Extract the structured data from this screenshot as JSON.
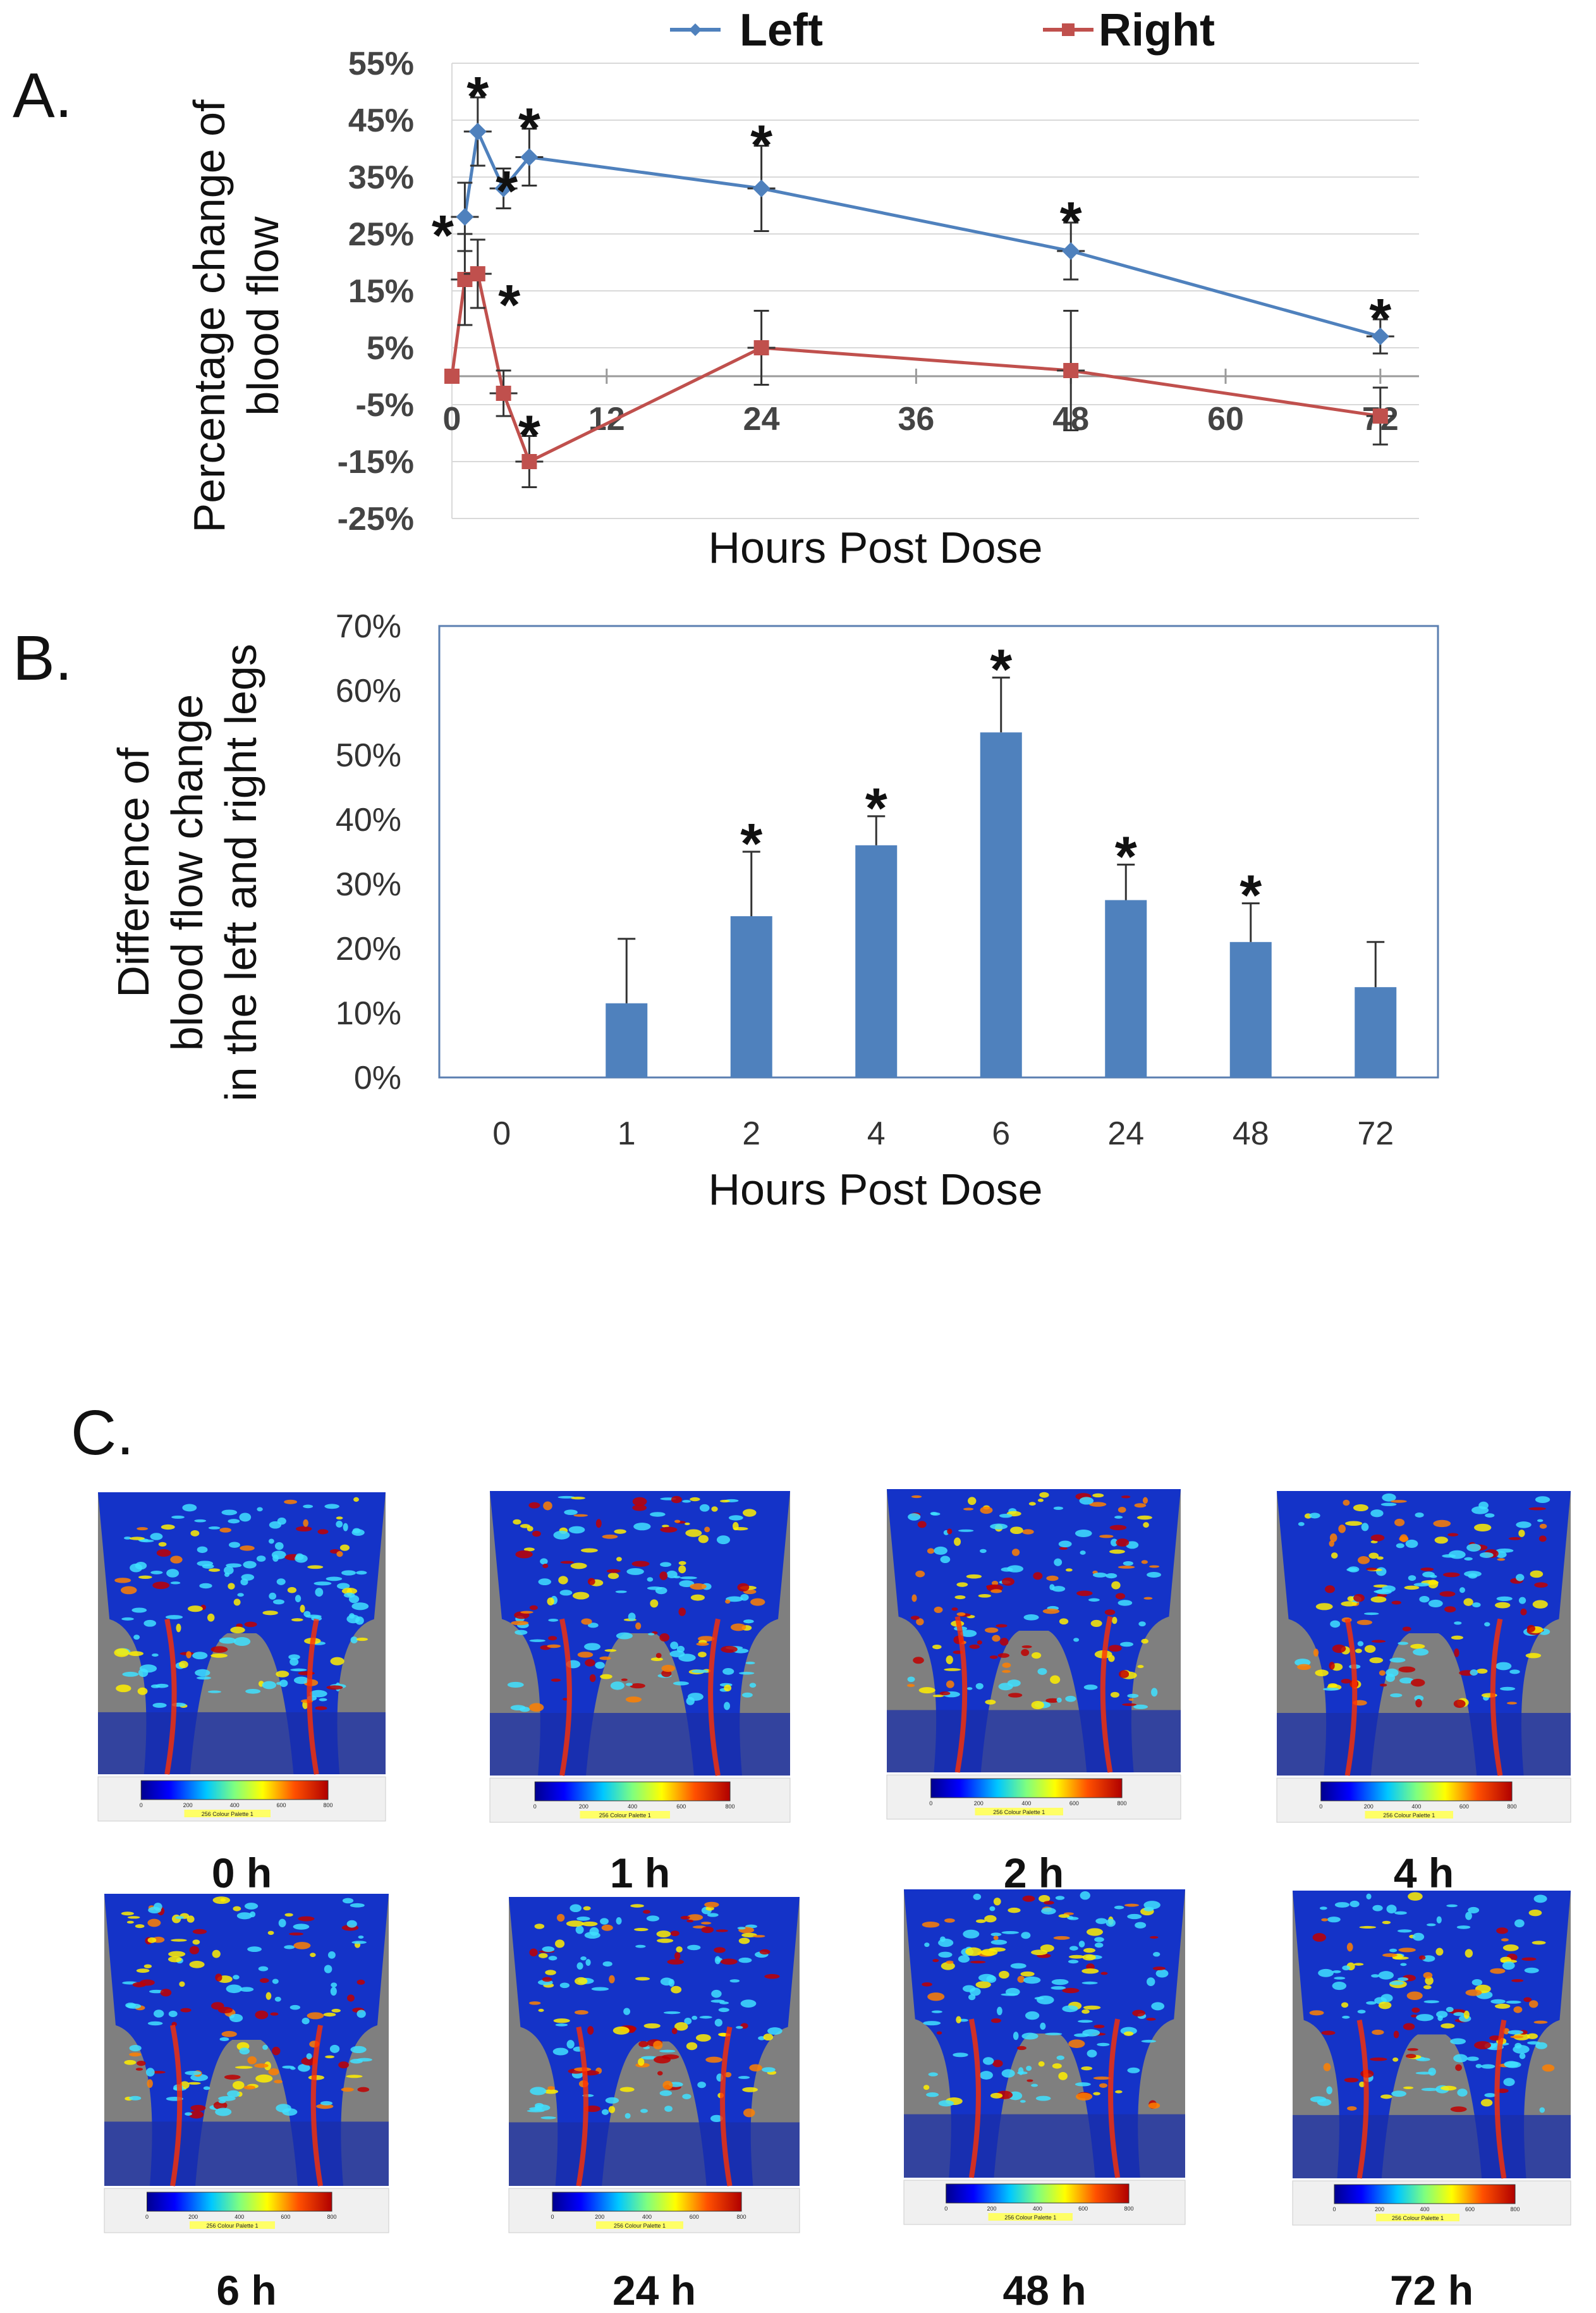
{
  "chart_data": [
    {
      "panel": "A.",
      "type": "line",
      "xlabel": "Hours Post Dose",
      "ylabel_lines": [
        "Percentage change of",
        "blood flow"
      ],
      "x_ticks": [
        0,
        12,
        24,
        36,
        48,
        60,
        72
      ],
      "x_tick_labels": [
        "0",
        "12",
        "24",
        "36",
        "48",
        "60",
        "72"
      ],
      "y_ticks": [
        -25,
        -15,
        -5,
        5,
        15,
        25,
        35,
        45,
        55
      ],
      "y_tick_labels": [
        "-25%",
        "-15%",
        "-5%",
        "5%",
        "15%",
        "25%",
        "35%",
        "45%",
        "55%"
      ],
      "xlim": [
        0,
        75
      ],
      "ylim": [
        -25,
        55
      ],
      "grid": true,
      "legend_position": "top",
      "series": [
        {
          "name": "Left",
          "color": "#4F81BD",
          "marker": "diamond",
          "x": [
            1,
            2,
            4,
            6,
            24,
            48,
            72
          ],
          "y": [
            28,
            43,
            33,
            38.5,
            33,
            22,
            7
          ],
          "err": [
            6,
            6,
            3.5,
            5,
            7.5,
            5,
            3
          ],
          "significant": [
            true,
            true,
            true,
            true,
            true,
            true,
            true
          ]
        },
        {
          "name": "Right",
          "color": "#C0504D",
          "marker": "square",
          "x": [
            0,
            1,
            2,
            4,
            6,
            24,
            48,
            72
          ],
          "y": [
            0,
            17,
            18,
            -3,
            -15,
            5,
            1,
            -7
          ],
          "err": [
            0,
            8,
            6,
            4,
            4.5,
            6.5,
            10.5,
            5
          ],
          "significant": [
            false,
            false,
            true,
            false,
            true,
            false,
            false,
            false
          ]
        }
      ],
      "annotation": "*"
    },
    {
      "panel": "B.",
      "type": "bar",
      "xlabel": "Hours Post Dose",
      "ylabel_lines": [
        "Difference of",
        "blood flow change",
        "in the left and right legs"
      ],
      "categories": [
        "0",
        "1",
        "2",
        "4",
        "6",
        "24",
        "48",
        "72"
      ],
      "values": [
        0,
        11.5,
        25,
        36,
        53.5,
        27.5,
        21,
        14
      ],
      "err": [
        0,
        10,
        10,
        4.5,
        8.5,
        5.5,
        6,
        7
      ],
      "significant": [
        false,
        false,
        true,
        true,
        true,
        true,
        true,
        false
      ],
      "y_ticks": [
        0,
        10,
        20,
        30,
        40,
        50,
        60,
        70
      ],
      "y_tick_labels": [
        "0%",
        "10%",
        "20%",
        "30%",
        "40%",
        "50%",
        "60%",
        "70%"
      ],
      "ylim": [
        0,
        70
      ],
      "color": "#4F81BD",
      "annotation": "*"
    }
  ],
  "panel_c": {
    "letter": "C.",
    "thumbnails": [
      {
        "label": "0 h",
        "warmth": 0.2
      },
      {
        "label": "1 h",
        "warmth": 0.6
      },
      {
        "label": "2 h",
        "warmth": 0.7
      },
      {
        "label": "4 h",
        "warmth": 0.65
      },
      {
        "label": "6 h",
        "warmth": 0.55
      },
      {
        "label": "24 h",
        "warmth": 0.55
      },
      {
        "label": "48 h",
        "warmth": 0.45
      },
      {
        "label": "72 h",
        "warmth": 0.4
      }
    ],
    "colorbar": {
      "tick_labels": [
        "0",
        "200",
        "400",
        "600",
        "800"
      ],
      "palette_name": "256 Colour Palette 1"
    }
  }
}
